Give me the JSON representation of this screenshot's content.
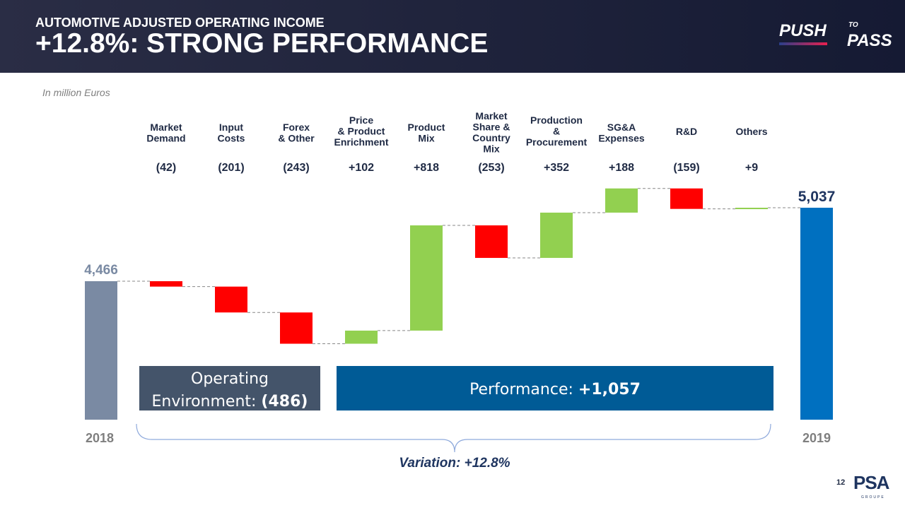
{
  "header": {
    "subtitle": "AUTOMOTIVE ADJUSTED OPERATING INCOME",
    "title": "+12.8%: STRONG PERFORMANCE",
    "logo": {
      "push": "PUSH",
      "to": "TO",
      "pass": "PASS"
    }
  },
  "unit": "In million Euros",
  "footer": {
    "page": "12",
    "logo": "PSA",
    "logo_sub": "GROUPE"
  },
  "colors": {
    "start": "#7a8aa3",
    "end": "#0070c0",
    "neg": "#ff0000",
    "pos": "#92d050",
    "env": "#44546a",
    "perf": "#005b96"
  },
  "chart_data": {
    "type": "waterfall",
    "start": {
      "label": "2018",
      "value": 4466,
      "display": "4,466"
    },
    "end": {
      "label": "2019",
      "value": 5037,
      "display": "5,037"
    },
    "steps": [
      {
        "label": [
          "Market",
          "Demand"
        ],
        "value": -42,
        "display": "(42)"
      },
      {
        "label": [
          "Input",
          "Costs"
        ],
        "value": -201,
        "display": "(201)"
      },
      {
        "label": [
          "Forex",
          "& Other"
        ],
        "value": -243,
        "display": "(243)"
      },
      {
        "label": [
          "Price",
          "& Product",
          "Enrichment"
        ],
        "value": 102,
        "display": "+102"
      },
      {
        "label": [
          "Product",
          "Mix"
        ],
        "value": 818,
        "display": "+818"
      },
      {
        "label": [
          "Market",
          "Share &",
          "Country",
          "Mix"
        ],
        "value": -253,
        "display": "(253)"
      },
      {
        "label": [
          "Production",
          "&",
          "Procurement"
        ],
        "value": 352,
        "display": "+352"
      },
      {
        "label": [
          "SG&A",
          "Expenses"
        ],
        "value": 188,
        "display": "+188"
      },
      {
        "label": [
          "R&D"
        ],
        "value": -159,
        "display": "(159)"
      },
      {
        "label": [
          "Others"
        ],
        "value": 9,
        "display": "+9"
      }
    ],
    "groups": [
      {
        "label": "Operating",
        "label2": "Environment: ",
        "value": "(486)"
      },
      {
        "label": "Performance: ",
        "value": "+1,057"
      }
    ],
    "variation": "Variation: +12.8%"
  }
}
